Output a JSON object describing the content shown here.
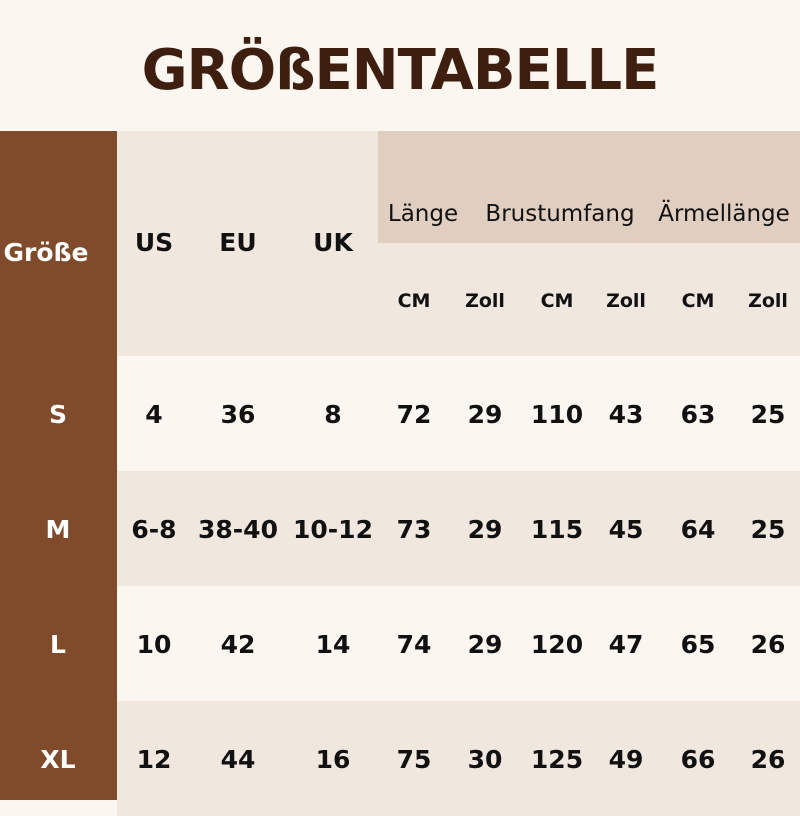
{
  "title": "GRÖßENTABELLE",
  "size_header": "Größe",
  "region_headers": [
    "US",
    "EU",
    "UK"
  ],
  "measure_headers": [
    "Länge",
    "Brustumfang",
    "Ärmellänge"
  ],
  "units": [
    "CM",
    "Zoll",
    "CM",
    "Zoll",
    "CM",
    "Zoll"
  ],
  "rows": [
    {
      "size": "S",
      "values": [
        "4",
        "36",
        "8",
        "72",
        "29",
        "110",
        "43",
        "63",
        "25"
      ]
    },
    {
      "size": "M",
      "values": [
        "6-8",
        "38-40",
        "10-12",
        "73",
        "29",
        "115",
        "45",
        "64",
        "25"
      ]
    },
    {
      "size": "L",
      "values": [
        "10",
        "42",
        "14",
        "74",
        "29",
        "120",
        "47",
        "65",
        "26"
      ]
    },
    {
      "size": "XL",
      "values": [
        "12",
        "44",
        "16",
        "75",
        "30",
        "125",
        "49",
        "66",
        "26"
      ]
    }
  ],
  "colors": {
    "brown": "#7f4b2a",
    "header": "#f0e7de",
    "band": "#e0cfc0",
    "light": "#fbf6f0",
    "title": "#3e1f0f"
  }
}
